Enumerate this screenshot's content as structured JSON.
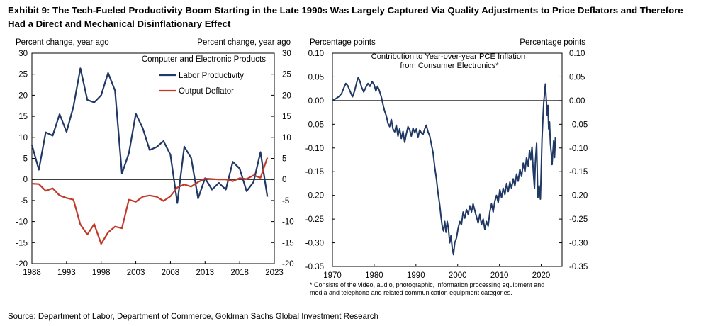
{
  "header": {
    "title": "Exhibit 9: The Tech-Fueled Productivity Boom Starting in the Late 1990s Was Largely Captured Via Quality Adjustments to Price Deflators and Therefore Had a Direct and Mechanical Disinflationary Effect"
  },
  "footer": {
    "source": "Source: Department of Labor, Department of Commerce, Goldman Sachs Global Investment Research"
  },
  "chart_data": [
    {
      "type": "line",
      "title": "Computer and Electronic Products",
      "ylabel_left": "Percent change, year ago",
      "ylabel_right": "Percent change, year ago",
      "ylim": [
        -20,
        30
      ],
      "yticks": [
        -20,
        -15,
        -10,
        -5,
        0,
        5,
        10,
        15,
        20,
        25,
        30
      ],
      "xlim": [
        1988,
        2023
      ],
      "xticks": [
        1988,
        1993,
        1998,
        2003,
        2008,
        2013,
        2018,
        2023
      ],
      "grid": false,
      "legend": "top-right",
      "x": [
        1988,
        1989,
        1990,
        1991,
        1992,
        1993,
        1994,
        1995,
        1996,
        1997,
        1998,
        1999,
        2000,
        2001,
        2002,
        2003,
        2004,
        2005,
        2006,
        2007,
        2008,
        2009,
        2010,
        2011,
        2012,
        2013,
        2014,
        2015,
        2016,
        2017,
        2018,
        2019,
        2020,
        2021,
        2022
      ],
      "series": [
        {
          "name": "Labor Productivity",
          "color": "#1f3864",
          "values": [
            8.2,
            2.3,
            11.2,
            10.4,
            15.5,
            11.3,
            17.3,
            26.4,
            18.9,
            18.3,
            20.0,
            25.3,
            21.1,
            1.4,
            6.2,
            15.6,
            12.2,
            7.0,
            7.7,
            9.1,
            5.9,
            -5.6,
            7.8,
            5.1,
            -4.5,
            0.3,
            -2.4,
            -0.8,
            -2.4,
            4.2,
            2.6,
            -2.8,
            -0.6,
            6.5,
            -4.1
          ]
        },
        {
          "name": "Output Deflator",
          "color": "#c0392b",
          "values": [
            -1.0,
            -1.1,
            -2.7,
            -2.1,
            -3.8,
            -4.4,
            -4.8,
            -10.7,
            -13.1,
            -10.6,
            -15.3,
            -12.6,
            -11.2,
            -11.6,
            -4.8,
            -5.3,
            -4.1,
            -3.8,
            -4.1,
            -5.1,
            -4.0,
            -1.9,
            -1.2,
            -1.7,
            -0.6,
            0.2,
            0.1,
            0.0,
            0.0,
            -0.4,
            0.3,
            0.1,
            1.0,
            0.4,
            5.2
          ]
        }
      ]
    },
    {
      "type": "line",
      "title": "Contribution to Year-over-year PCE Inflation from Consumer Electronics*",
      "ylabel_left": "Percentage points",
      "ylabel_right": "Percentage points",
      "ylim": [
        -0.35,
        0.1
      ],
      "yticks": [
        "0.10",
        "0.05",
        "0.00",
        "-0.05",
        "-0.10",
        "-0.15",
        "-0.20",
        "-0.25",
        "-0.30",
        "-0.35"
      ],
      "xlim": [
        1970,
        2025
      ],
      "xticks": [
        1970,
        1980,
        1990,
        2000,
        2010,
        2020
      ],
      "grid": false,
      "footnote": "* Consists of the video, audio, photographic, information processing equipment and media and telephone and related communication equipment categories.",
      "series": [
        {
          "name": "",
          "color": "#1f3864",
          "points": [
            [
              1970.0,
              0.0
            ],
            [
              1970.8,
              0.004
            ],
            [
              1971.5,
              0.008
            ],
            [
              1972.2,
              0.015
            ],
            [
              1972.7,
              0.026
            ],
            [
              1973.2,
              0.036
            ],
            [
              1973.7,
              0.031
            ],
            [
              1974.3,
              0.018
            ],
            [
              1974.8,
              0.008
            ],
            [
              1975.3,
              0.02
            ],
            [
              1975.8,
              0.038
            ],
            [
              1976.2,
              0.049
            ],
            [
              1976.6,
              0.04
            ],
            [
              1977.0,
              0.028
            ],
            [
              1977.5,
              0.018
            ],
            [
              1978.0,
              0.028
            ],
            [
              1978.5,
              0.036
            ],
            [
              1979.0,
              0.03
            ],
            [
              1979.5,
              0.04
            ],
            [
              1980.0,
              0.033
            ],
            [
              1980.4,
              0.02
            ],
            [
              1980.8,
              0.03
            ],
            [
              1981.2,
              0.022
            ],
            [
              1981.7,
              0.008
            ],
            [
              1982.1,
              -0.008
            ],
            [
              1982.5,
              -0.022
            ],
            [
              1982.9,
              -0.032
            ],
            [
              1983.3,
              -0.048
            ],
            [
              1983.7,
              -0.055
            ],
            [
              1984.1,
              -0.04
            ],
            [
              1984.5,
              -0.06
            ],
            [
              1984.9,
              -0.066
            ],
            [
              1985.3,
              -0.052
            ],
            [
              1985.7,
              -0.075
            ],
            [
              1986.1,
              -0.06
            ],
            [
              1986.5,
              -0.08
            ],
            [
              1986.9,
              -0.065
            ],
            [
              1987.3,
              -0.088
            ],
            [
              1987.7,
              -0.07
            ],
            [
              1988.1,
              -0.055
            ],
            [
              1988.5,
              -0.062
            ],
            [
              1988.9,
              -0.075
            ],
            [
              1989.3,
              -0.058
            ],
            [
              1989.7,
              -0.068
            ],
            [
              1990.1,
              -0.06
            ],
            [
              1990.5,
              -0.078
            ],
            [
              1990.9,
              -0.062
            ],
            [
              1991.3,
              -0.068
            ],
            [
              1991.7,
              -0.072
            ],
            [
              1992.1,
              -0.06
            ],
            [
              1992.5,
              -0.052
            ],
            [
              1992.9,
              -0.066
            ],
            [
              1993.3,
              -0.075
            ],
            [
              1993.7,
              -0.092
            ],
            [
              1994.1,
              -0.11
            ],
            [
              1994.5,
              -0.14
            ],
            [
              1994.9,
              -0.165
            ],
            [
              1995.3,
              -0.195
            ],
            [
              1995.7,
              -0.22
            ],
            [
              1996.0,
              -0.245
            ],
            [
              1996.3,
              -0.265
            ],
            [
              1996.6,
              -0.275
            ],
            [
              1996.9,
              -0.255
            ],
            [
              1997.2,
              -0.278
            ],
            [
              1997.5,
              -0.255
            ],
            [
              1997.8,
              -0.272
            ],
            [
              1998.1,
              -0.3
            ],
            [
              1998.4,
              -0.285
            ],
            [
              1998.7,
              -0.312
            ],
            [
              1999.0,
              -0.325
            ],
            [
              1999.3,
              -0.3
            ],
            [
              1999.7,
              -0.29
            ],
            [
              2000.1,
              -0.27
            ],
            [
              2000.5,
              -0.255
            ],
            [
              2000.9,
              -0.262
            ],
            [
              2001.3,
              -0.235
            ],
            [
              2001.7,
              -0.248
            ],
            [
              2002.1,
              -0.23
            ],
            [
              2002.5,
              -0.24
            ],
            [
              2002.9,
              -0.222
            ],
            [
              2003.3,
              -0.235
            ],
            [
              2003.7,
              -0.218
            ],
            [
              2004.1,
              -0.232
            ],
            [
              2004.5,
              -0.245
            ],
            [
              2004.9,
              -0.258
            ],
            [
              2005.3,
              -0.24
            ],
            [
              2005.7,
              -0.262
            ],
            [
              2006.1,
              -0.25
            ],
            [
              2006.5,
              -0.272
            ],
            [
              2006.9,
              -0.255
            ],
            [
              2007.3,
              -0.265
            ],
            [
              2007.7,
              -0.235
            ],
            [
              2008.1,
              -0.218
            ],
            [
              2008.5,
              -0.235
            ],
            [
              2008.9,
              -0.212
            ],
            [
              2009.3,
              -0.2
            ],
            [
              2009.7,
              -0.215
            ],
            [
              2010.1,
              -0.188
            ],
            [
              2010.5,
              -0.205
            ],
            [
              2010.9,
              -0.185
            ],
            [
              2011.3,
              -0.198
            ],
            [
              2011.7,
              -0.175
            ],
            [
              2012.1,
              -0.192
            ],
            [
              2012.5,
              -0.172
            ],
            [
              2012.9,
              -0.185
            ],
            [
              2013.3,
              -0.165
            ],
            [
              2013.7,
              -0.18
            ],
            [
              2014.1,
              -0.155
            ],
            [
              2014.5,
              -0.17
            ],
            [
              2014.9,
              -0.145
            ],
            [
              2015.3,
              -0.16
            ],
            [
              2015.7,
              -0.132
            ],
            [
              2016.1,
              -0.15
            ],
            [
              2016.5,
              -0.12
            ],
            [
              2016.9,
              -0.138
            ],
            [
              2017.2,
              -0.105
            ],
            [
              2017.5,
              -0.125
            ],
            [
              2017.8,
              -0.098
            ],
            [
              2018.1,
              -0.15
            ],
            [
              2018.4,
              -0.185
            ],
            [
              2018.6,
              -0.13
            ],
            [
              2018.9,
              -0.09
            ],
            [
              2019.2,
              -0.205
            ],
            [
              2019.5,
              -0.18
            ],
            [
              2019.8,
              -0.208
            ],
            [
              2020.0,
              -0.15
            ],
            [
              2020.2,
              -0.08
            ],
            [
              2020.4,
              -0.04
            ],
            [
              2020.6,
              -0.005
            ],
            [
              2020.8,
              0.015
            ],
            [
              2021.0,
              0.035
            ],
            [
              2021.2,
              0.005
            ],
            [
              2021.4,
              -0.03
            ],
            [
              2021.6,
              -0.01
            ],
            [
              2021.8,
              -0.06
            ],
            [
              2022.0,
              -0.045
            ],
            [
              2022.2,
              -0.09
            ],
            [
              2022.4,
              -0.11
            ],
            [
              2022.6,
              -0.135
            ],
            [
              2022.8,
              -0.11
            ],
            [
              2023.0,
              -0.085
            ],
            [
              2023.2,
              -0.12
            ],
            [
              2023.4,
              -0.078
            ]
          ]
        }
      ]
    }
  ]
}
